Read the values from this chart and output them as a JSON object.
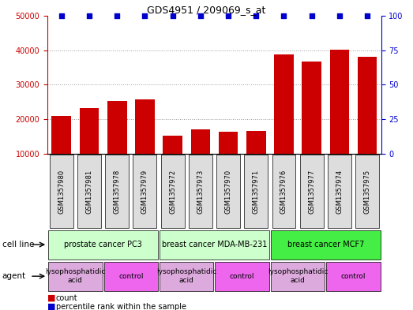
{
  "title": "GDS4951 / 209069_s_at",
  "samples": [
    "GSM1357980",
    "GSM1357981",
    "GSM1357978",
    "GSM1357979",
    "GSM1357972",
    "GSM1357973",
    "GSM1357970",
    "GSM1357971",
    "GSM1357976",
    "GSM1357977",
    "GSM1357974",
    "GSM1357975"
  ],
  "counts": [
    21000,
    23200,
    25200,
    25800,
    15200,
    17000,
    16500,
    16700,
    38800,
    36800,
    40200,
    38200
  ],
  "percentile_ranks": [
    100,
    100,
    100,
    100,
    100,
    100,
    100,
    100,
    100,
    100,
    100,
    100
  ],
  "bar_color": "#cc0000",
  "dot_color": "#0000cc",
  "ylim_left": [
    10000,
    50000
  ],
  "ylim_right": [
    0,
    100
  ],
  "yticks_left": [
    10000,
    20000,
    30000,
    40000,
    50000
  ],
  "yticks_right": [
    0,
    25,
    50,
    75,
    100
  ],
  "cell_line_groups": [
    {
      "label": "prostate cancer PC3",
      "start": 0,
      "end": 4,
      "color": "#ccffcc"
    },
    {
      "label": "breast cancer MDA-MB-231",
      "start": 4,
      "end": 8,
      "color": "#ccffcc"
    },
    {
      "label": "breast cancer MCF7",
      "start": 8,
      "end": 12,
      "color": "#44ee44"
    }
  ],
  "agent_groups": [
    {
      "label": "lysophosphatidic\nacid",
      "start": 0,
      "end": 2,
      "color": "#ddaadd"
    },
    {
      "label": "control",
      "start": 2,
      "end": 4,
      "color": "#ee66ee"
    },
    {
      "label": "lysophosphatidic\nacid",
      "start": 4,
      "end": 6,
      "color": "#ddaadd"
    },
    {
      "label": "control",
      "start": 6,
      "end": 8,
      "color": "#ee66ee"
    },
    {
      "label": "lysophosphatidic\nacid",
      "start": 8,
      "end": 10,
      "color": "#ddaadd"
    },
    {
      "label": "control",
      "start": 10,
      "end": 12,
      "color": "#ee66ee"
    }
  ],
  "cell_line_label": "cell line",
  "agent_label": "agent",
  "legend_count_label": "count",
  "legend_percentile_label": "percentile rank within the sample",
  "bg_color": "#ffffff",
  "grid_color": "#999999",
  "tick_color_left": "#cc0000",
  "tick_color_right": "#0000cc",
  "xticklabel_bg": "#dddddd",
  "xticklabel_fontsize": 6.0,
  "bar_fontsize": 7.0
}
